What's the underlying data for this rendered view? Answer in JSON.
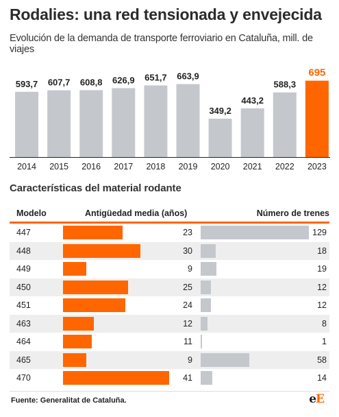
{
  "header": {
    "title": "Rodalies: una red tensionada y envejecida",
    "subtitle": "Evolución de la demanda de transporte ferroviario en Cataluña, mill. de viajes"
  },
  "chart_data": [
    {
      "type": "bar",
      "categories": [
        "2014",
        "2015",
        "2016",
        "2017",
        "2018",
        "2019",
        "2020",
        "2021",
        "2022",
        "2023"
      ],
      "values": [
        593.7,
        607.7,
        608.8,
        626.9,
        651.7,
        663.9,
        349.2,
        443.2,
        588.3,
        695
      ],
      "value_labels": [
        "593,7",
        "607,7",
        "608,8",
        "626,9",
        "651,7",
        "663,9",
        "349,2",
        "443,2",
        "588,3",
        "695"
      ],
      "title": "Evolución de la demanda de transporte ferroviario en Cataluña, mill. de viajes",
      "highlight_index": 9,
      "colors": {
        "bar": "#c4c8cd",
        "highlight": "#ff6600",
        "highlight_label": "#ff6600"
      },
      "ylim": [
        0,
        730
      ],
      "grid": false,
      "legend": "none"
    },
    {
      "type": "table",
      "title": "Características del material rodante",
      "columns": [
        "Modelo",
        "Antigüedad media (años)",
        "Número de trenes"
      ],
      "rows": [
        {
          "model": "447",
          "age": 23,
          "trains": 129
        },
        {
          "model": "448",
          "age": 30,
          "trains": 18
        },
        {
          "model": "449",
          "age": 9,
          "trains": 19
        },
        {
          "model": "450",
          "age": 25,
          "trains": 12
        },
        {
          "model": "451",
          "age": 24,
          "trains": 12
        },
        {
          "model": "463",
          "age": 12,
          "trains": 8
        },
        {
          "model": "464",
          "age": 11,
          "trains": 1
        },
        {
          "model": "465",
          "age": 9,
          "trains": 58
        },
        {
          "model": "470",
          "age": 41,
          "trains": 14
        }
      ],
      "age_max": 41,
      "trains_max": 129,
      "colors": {
        "age_bar": "#ff6600",
        "trains_bar": "#c4c8cd",
        "rule": "#ff6600",
        "alt_row": "#eeeeee"
      }
    }
  ],
  "footer": {
    "source": "Fuente: Generalitat de Cataluña.",
    "logo_text": "eE"
  }
}
